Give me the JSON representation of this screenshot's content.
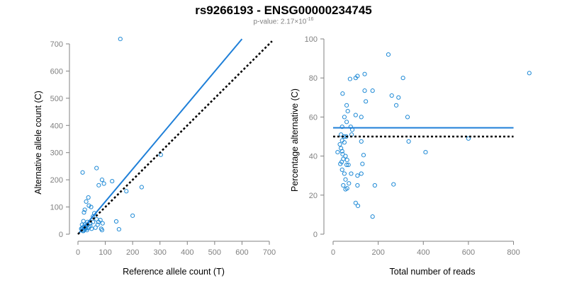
{
  "header": {
    "title": "rs9266193 - ENSG00000234745",
    "pvalue_prefix": "p-value: 2.17×10",
    "pvalue_exp": "-16"
  },
  "colors": {
    "points": "#1f8ad6",
    "fit_line": "#1e7fd8",
    "reference_line": "#000000",
    "axis": "#808080"
  },
  "chart_data": [
    {
      "type": "scatter",
      "xlabel": "Reference allele count (T)",
      "ylabel": "Alternative allele count (C)",
      "xlim": [
        0,
        700
      ],
      "ylim": [
        0,
        700
      ],
      "xticks": [
        0,
        100,
        200,
        300,
        400,
        500,
        600,
        700
      ],
      "yticks": [
        0,
        100,
        200,
        300,
        400,
        500,
        600,
        700
      ],
      "lines": [
        {
          "role": "fit",
          "style": "solid",
          "color": "#1e7fd8",
          "x": [
            0,
            600
          ],
          "y": [
            0,
            718
          ]
        },
        {
          "role": "reference",
          "style": "dotted",
          "color": "#000000",
          "x": [
            0,
            710
          ],
          "y": [
            0,
            710
          ]
        }
      ],
      "points": [
        [
          155,
          718
        ],
        [
          303,
          292
        ],
        [
          233,
          173
        ],
        [
          68,
          243
        ],
        [
          17,
          227
        ],
        [
          88,
          200
        ],
        [
          95,
          186
        ],
        [
          125,
          195
        ],
        [
          76,
          180
        ],
        [
          177,
          158
        ],
        [
          200,
          68
        ],
        [
          140,
          47
        ],
        [
          150,
          18
        ],
        [
          38,
          135
        ],
        [
          48,
          100
        ],
        [
          40,
          105
        ],
        [
          30,
          120
        ],
        [
          25,
          90
        ],
        [
          22,
          80
        ],
        [
          60,
          77
        ],
        [
          55,
          65
        ],
        [
          68,
          55
        ],
        [
          82,
          52
        ],
        [
          75,
          45
        ],
        [
          90,
          40
        ],
        [
          72,
          35
        ],
        [
          35,
          45
        ],
        [
          45,
          40
        ],
        [
          30,
          30
        ],
        [
          28,
          20
        ],
        [
          22,
          15
        ],
        [
          18,
          12
        ],
        [
          15,
          20
        ],
        [
          25,
          35
        ],
        [
          20,
          12
        ],
        [
          33,
          15
        ],
        [
          40,
          25
        ],
        [
          50,
          20
        ],
        [
          85,
          20
        ],
        [
          88,
          15
        ],
        [
          20,
          48
        ],
        [
          15,
          35
        ],
        [
          12,
          20
        ],
        [
          28,
          25
        ],
        [
          35,
          22
        ],
        [
          18,
          25
        ],
        [
          55,
          45
        ],
        [
          64,
          24
        ],
        [
          45,
          30
        ],
        [
          25,
          18
        ]
      ]
    },
    {
      "type": "scatter",
      "xlabel": "Total number of reads",
      "ylabel": "Percentage alternative (C)",
      "xlim": [
        0,
        880
      ],
      "ylim": [
        0,
        100
      ],
      "xticks": [
        0,
        200,
        400,
        600,
        800
      ],
      "yticks": [
        0,
        20,
        40,
        60,
        80,
        100
      ],
      "lines": [
        {
          "role": "fit",
          "style": "solid",
          "color": "#1e7fd8",
          "x": [
            0,
            800
          ],
          "y": [
            54.5,
            54.5
          ]
        },
        {
          "role": "reference",
          "style": "dotted",
          "color": "#000000",
          "x": [
            0,
            800
          ],
          "y": [
            50,
            50
          ]
        }
      ],
      "points": [
        [
          870,
          82.5
        ],
        [
          245,
          92
        ],
        [
          310,
          80
        ],
        [
          140,
          82
        ],
        [
          108,
          81
        ],
        [
          100,
          80
        ],
        [
          75,
          79.5
        ],
        [
          260,
          71
        ],
        [
          290,
          70
        ],
        [
          280,
          66
        ],
        [
          175,
          73.5
        ],
        [
          140,
          73.5
        ],
        [
          42,
          72
        ],
        [
          145,
          68
        ],
        [
          60,
          66
        ],
        [
          65,
          63
        ],
        [
          100,
          61
        ],
        [
          50,
          60
        ],
        [
          330,
          60
        ],
        [
          125,
          60
        ],
        [
          60,
          57.5
        ],
        [
          40,
          55
        ],
        [
          78,
          55
        ],
        [
          85,
          53.5
        ],
        [
          35,
          51
        ],
        [
          48,
          50
        ],
        [
          58,
          50
        ],
        [
          82,
          51
        ],
        [
          40,
          48
        ],
        [
          50,
          47
        ],
        [
          335,
          47.5
        ],
        [
          125,
          47.5
        ],
        [
          30,
          46
        ],
        [
          35,
          44
        ],
        [
          40,
          42.5
        ],
        [
          20,
          42
        ],
        [
          410,
          42
        ],
        [
          42,
          41
        ],
        [
          55,
          40
        ],
        [
          135,
          40.5
        ],
        [
          45,
          38.5
        ],
        [
          62,
          38
        ],
        [
          38,
          37
        ],
        [
          32,
          36
        ],
        [
          60,
          35.5
        ],
        [
          68,
          35.5
        ],
        [
          130,
          36
        ],
        [
          40,
          33
        ],
        [
          50,
          31
        ],
        [
          80,
          31
        ],
        [
          125,
          31
        ],
        [
          108,
          30
        ],
        [
          55,
          28
        ],
        [
          70,
          26
        ],
        [
          268,
          25.5
        ],
        [
          185,
          25
        ],
        [
          45,
          25
        ],
        [
          108,
          25
        ],
        [
          62,
          23.5
        ],
        [
          55,
          23
        ],
        [
          100,
          16
        ],
        [
          110,
          14.5
        ],
        [
          175,
          9
        ],
        [
          600,
          49
        ]
      ]
    }
  ]
}
